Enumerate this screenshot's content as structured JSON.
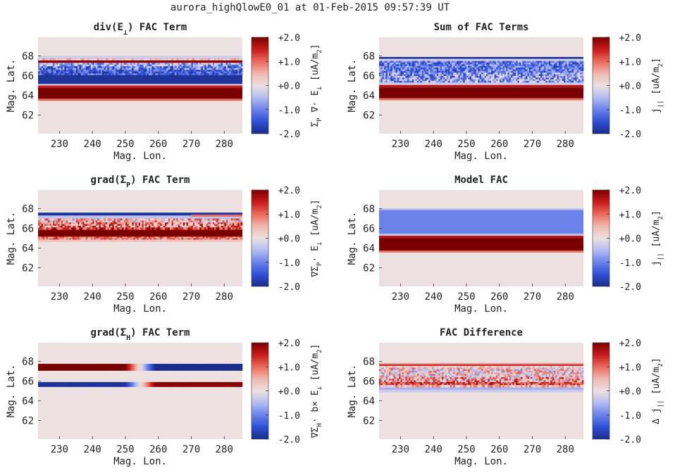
{
  "figure_title": "aurora_highQlowE0_01 at 01-Feb-2015 09:57:39 UT",
  "colors": {
    "background": "#ece0e0",
    "colormap": [
      "#1a2d8a",
      "#2f4fd6",
      "#6b82ea",
      "#b3bdf2",
      "#ece0e0",
      "#f1b8b0",
      "#ea6a5a",
      "#c81a1a",
      "#7a0000"
    ]
  },
  "chart_data": [
    {
      "type": "heatmap",
      "title_parts": [
        "div(E",
        "⊥",
        ") FAC Term"
      ],
      "xlabel": "Mag. Lon.",
      "ylabel": "Mag. Lat.",
      "xticks": [
        "230",
        "240",
        "250",
        "260",
        "270",
        "280"
      ],
      "xtick_values": [
        230,
        240,
        250,
        260,
        270,
        280
      ],
      "yticks": [
        "62",
        "64",
        "66",
        "68"
      ],
      "ytick_values": [
        62,
        64,
        66,
        68
      ],
      "xlim": [
        223.5,
        285.5
      ],
      "ylim": [
        60.1,
        69.9
      ],
      "clim": [
        -2,
        2
      ],
      "cbar_ticks": [
        "+2.0",
        "+1.0",
        "+0.0",
        "-1.0",
        "-2.0"
      ],
      "cbar_label_parts": [
        "Σ",
        "P",
        " ∇· E",
        "⊥",
        " [uA/m",
        "2",
        "]"
      ],
      "bands": [
        {
          "lat": [
            68.0,
            67.75
          ],
          "value": -0.3
        },
        {
          "lat": [
            67.75,
            67.55
          ],
          "value": 0.25,
          "noise": 0.6
        },
        {
          "lat": [
            67.55,
            67.3
          ],
          "value": 1.9
        },
        {
          "lat": [
            67.3,
            66.95
          ],
          "value": -0.6,
          "noise": 0.9
        },
        {
          "lat": [
            66.95,
            66.6
          ],
          "value": -1.1,
          "noise": 0.9
        },
        {
          "lat": [
            66.6,
            66.05
          ],
          "value": -1.35,
          "noise": 0.6
        },
        {
          "lat": [
            66.05,
            65.15
          ],
          "value": -1.9
        },
        {
          "lat": [
            65.15,
            65.0
          ],
          "value": -0.2
        },
        {
          "lat": [
            65.0,
            64.75
          ],
          "value": 1.5
        },
        {
          "lat": [
            64.75,
            63.65
          ],
          "value": 2.0
        },
        {
          "lat": [
            63.65,
            63.45
          ],
          "value": 1.0
        }
      ]
    },
    {
      "type": "heatmap",
      "title_parts": [
        "Sum of FAC Terms"
      ],
      "xlabel": "Mag. Lon.",
      "ylabel": "Mag. Lat.",
      "xticks": [
        "230",
        "240",
        "250",
        "260",
        "270",
        "280"
      ],
      "xtick_values": [
        230,
        240,
        250,
        260,
        270,
        280
      ],
      "yticks": [
        "62",
        "64",
        "66",
        "68"
      ],
      "ytick_values": [
        62,
        64,
        66,
        68
      ],
      "xlim": [
        223.5,
        285.5
      ],
      "ylim": [
        60.1,
        69.9
      ],
      "clim": [
        -2,
        2
      ],
      "cbar_ticks": [
        "+2.0",
        "+1.0",
        "+0.0",
        "-1.0",
        "-2.0"
      ],
      "cbar_label_parts": [
        "j",
        "||",
        " [uA/m",
        "2",
        "]"
      ],
      "bands": [
        {
          "lat": [
            67.9,
            67.7
          ],
          "value": -1.9
        },
        {
          "lat": [
            67.7,
            67.5
          ],
          "value": -0.2
        },
        {
          "lat": [
            67.5,
            66.3
          ],
          "value": -1.1,
          "noise": 0.7
        },
        {
          "lat": [
            66.3,
            65.3
          ],
          "value": -0.8,
          "noise": 1.0
        },
        {
          "lat": [
            65.3,
            65.05
          ],
          "value": -0.3
        },
        {
          "lat": [
            65.05,
            64.8
          ],
          "value": 1.6
        },
        {
          "lat": [
            64.8,
            63.7
          ],
          "value": 2.0
        },
        {
          "lat": [
            63.7,
            63.5
          ],
          "value": 1.0
        }
      ]
    },
    {
      "type": "heatmap",
      "title_parts": [
        "grad(Σ",
        "P",
        ") FAC Term"
      ],
      "xlabel": "Mag. Lon.",
      "ylabel": "Mag. Lat.",
      "xticks": [
        "230",
        "240",
        "250",
        "260",
        "270",
        "280"
      ],
      "xtick_values": [
        230,
        240,
        250,
        260,
        270,
        280
      ],
      "yticks": [
        "62",
        "64",
        "66",
        "68"
      ],
      "ytick_values": [
        62,
        64,
        66,
        68
      ],
      "xlim": [
        223.5,
        285.5
      ],
      "ylim": [
        60.1,
        69.9
      ],
      "clim": [
        -2,
        2
      ],
      "cbar_ticks": [
        "+2.0",
        "+1.0",
        "+0.0",
        "-1.0",
        "-2.0"
      ],
      "cbar_label_parts": [
        "∇Σ",
        "P",
        "· E",
        "⊥",
        " [uA/m",
        "2",
        "]"
      ],
      "bands": [
        {
          "lat": [
            67.6,
            67.3
          ],
          "value": -1.9
        },
        {
          "lat": [
            67.3,
            67.0
          ],
          "value": -0.4
        },
        {
          "lat": [
            67.0,
            66.6
          ],
          "value": 0.4,
          "noise": 1.0
        },
        {
          "lat": [
            66.6,
            66.1
          ],
          "value": 0.8,
          "noise": 1.1
        },
        {
          "lat": [
            66.1,
            65.85
          ],
          "value": 1.3,
          "noise": 0.7
        },
        {
          "lat": [
            65.85,
            65.15
          ],
          "value": 2.0
        },
        {
          "lat": [
            65.15,
            64.85
          ],
          "value": 0.9,
          "noise": 0.5
        },
        {
          "lat": [
            64.85,
            64.6
          ],
          "value": 0.3
        }
      ],
      "local_bands": [
        {
          "lat": [
            67.4,
            67.2
          ],
          "lon": [
            270,
            285.5
          ],
          "value": 1.0
        }
      ]
    },
    {
      "type": "heatmap",
      "title_parts": [
        "Model FAC"
      ],
      "xlabel": "Mag. Lon.",
      "ylabel": "Mag. Lat.",
      "xticks": [
        "230",
        "240",
        "250",
        "260",
        "270",
        "280"
      ],
      "xtick_values": [
        230,
        240,
        250,
        260,
        270,
        280
      ],
      "yticks": [
        "62",
        "64",
        "66",
        "68"
      ],
      "ytick_values": [
        62,
        64,
        66,
        68
      ],
      "xlim": [
        223.5,
        285.5
      ],
      "ylim": [
        60.1,
        69.9
      ],
      "clim": [
        -2,
        2
      ],
      "cbar_ticks": [
        "+2.0",
        "+1.0",
        "+0.0",
        "-1.0",
        "-2.0"
      ],
      "cbar_label_parts": [
        "j",
        "||",
        " [uA/m",
        "2",
        "]"
      ],
      "bands": [
        {
          "lat": [
            68.0,
            67.85
          ],
          "value": -0.55
        },
        {
          "lat": [
            67.85,
            65.45
          ],
          "value": -1.0
        },
        {
          "lat": [
            65.45,
            65.25
          ],
          "value": -0.4
        },
        {
          "lat": [
            65.25,
            65.0
          ],
          "value": 1.6
        },
        {
          "lat": [
            65.0,
            63.75
          ],
          "value": 2.0
        },
        {
          "lat": [
            63.75,
            63.55
          ],
          "value": 1.0
        }
      ]
    },
    {
      "type": "heatmap",
      "title_parts": [
        "grad(Σ",
        "H",
        ") FAC Term"
      ],
      "xlabel": "Mag. Lon.",
      "ylabel": "Mag. Lat.",
      "xticks": [
        "230",
        "240",
        "250",
        "260",
        "270",
        "280"
      ],
      "xtick_values": [
        230,
        240,
        250,
        260,
        270,
        280
      ],
      "yticks": [
        "62",
        "64",
        "66",
        "68"
      ],
      "ytick_values": [
        62,
        64,
        66,
        68
      ],
      "xlim": [
        223.5,
        285.5
      ],
      "ylim": [
        60.1,
        69.9
      ],
      "clim": [
        -2,
        2
      ],
      "cbar_ticks": [
        "+2.0",
        "+1.0",
        "+0.0",
        "-1.0",
        "-2.0"
      ],
      "cbar_label_parts": [
        "∇Σ",
        "H",
        "· b× E",
        "⊥",
        " [uA/m",
        "2",
        "]"
      ],
      "bands": [],
      "antisym_bands": [
        {
          "lat": [
            67.75,
            67.05
          ],
          "west": 2.0,
          "east": -2.0,
          "fade_center": 254.5
        },
        {
          "lat": [
            65.9,
            65.4
          ],
          "west": -1.9,
          "east": 1.9,
          "fade_center": 254.5
        }
      ]
    },
    {
      "type": "heatmap",
      "title_parts": [
        "FAC Difference"
      ],
      "xlabel": "Mag. Lon.",
      "ylabel": "Mag. Lat.",
      "xticks": [
        "230",
        "240",
        "250",
        "260",
        "270",
        "280"
      ],
      "xtick_values": [
        230,
        240,
        250,
        260,
        270,
        280
      ],
      "yticks": [
        "62",
        "64",
        "66",
        "68"
      ],
      "ytick_values": [
        62,
        64,
        66,
        68
      ],
      "xlim": [
        223.5,
        285.5
      ],
      "ylim": [
        60.1,
        69.9
      ],
      "clim": [
        -2,
        2
      ],
      "cbar_ticks": [
        "+2.0",
        "+1.0",
        "+0.0",
        "-1.0",
        "-2.0"
      ],
      "cbar_label_parts": [
        "Δ j",
        "||",
        " [uA/m",
        "2",
        "]"
      ],
      "bands": [
        {
          "lat": [
            67.85,
            67.7
          ],
          "value": 0.6
        },
        {
          "lat": [
            67.7,
            67.55
          ],
          "value": 1.6
        },
        {
          "lat": [
            67.55,
            67.35
          ],
          "value": 0.3,
          "noise": 0.4
        },
        {
          "lat": [
            67.35,
            66.4
          ],
          "value": 0.2,
          "noise": 1.0
        },
        {
          "lat": [
            66.4,
            65.9
          ],
          "value": 0.5,
          "noise": 1.2
        },
        {
          "lat": [
            65.9,
            65.6
          ],
          "value": 1.2,
          "noise": 0.7
        },
        {
          "lat": [
            65.6,
            65.35
          ],
          "value": 0.5,
          "noise": 0.6
        },
        {
          "lat": [
            65.35,
            65.1
          ],
          "value": -0.6
        },
        {
          "lat": [
            65.1,
            64.85
          ],
          "value": -0.3
        }
      ]
    }
  ]
}
